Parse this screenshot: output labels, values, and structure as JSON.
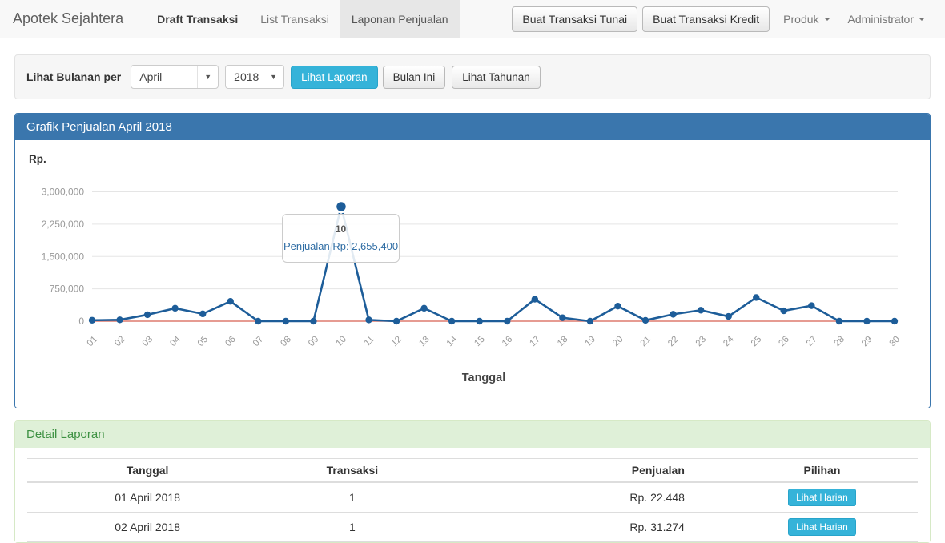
{
  "navbar": {
    "brand": "Apotek Sejahtera",
    "items": [
      {
        "label": "Draft Transaksi",
        "active": false,
        "emphasis": true
      },
      {
        "label": "List Transaksi",
        "active": false,
        "emphasis": false
      },
      {
        "label": "Laponan Penjualan",
        "active": true,
        "emphasis": false
      }
    ],
    "action_buttons": [
      "Buat Transaksi Tunai",
      "Buat Transaksi Kredit"
    ],
    "dropdowns": [
      "Produk",
      "Administrator"
    ]
  },
  "filter": {
    "label": "Lihat Bulanan per",
    "month": "April",
    "year": "2018",
    "buttons": [
      {
        "label": "Lihat Laporan",
        "style": "info"
      },
      {
        "label": "Bulan Ini",
        "style": "default"
      },
      {
        "label": "Lihat Tahunan",
        "style": "default"
      }
    ]
  },
  "chart_panel": {
    "title": "Grafik Penjualan April 2018"
  },
  "chart_data": {
    "type": "line",
    "title": "Grafik Penjualan April 2018",
    "ylabel": "Rp.",
    "xlabel": "Tanggal",
    "ylim": [
      0,
      3000000
    ],
    "grid": true,
    "yticks": [
      0,
      750000,
      1500000,
      2250000,
      3000000
    ],
    "ytick_labels": [
      "0",
      "750,000",
      "1,500,000",
      "2,250,000",
      "3,000,000"
    ],
    "categories": [
      "01",
      "02",
      "03",
      "04",
      "05",
      "06",
      "07",
      "08",
      "09",
      "10",
      "11",
      "12",
      "13",
      "14",
      "15",
      "16",
      "17",
      "18",
      "19",
      "20",
      "21",
      "22",
      "23",
      "24",
      "25",
      "26",
      "27",
      "28",
      "29",
      "30"
    ],
    "series": [
      {
        "name": "Penjualan",
        "color": "#1d5d99",
        "values": [
          22448,
          31274,
          150000,
          300000,
          170000,
          460000,
          0,
          0,
          0,
          2655400,
          30000,
          0,
          300000,
          0,
          0,
          0,
          510000,
          80000,
          0,
          350000,
          20000,
          160000,
          255000,
          110000,
          550000,
          240000,
          360000,
          0,
          0,
          0
        ]
      }
    ],
    "zero_line_color": "#dd7a6e",
    "tick_color": "#999999",
    "grid_color": "#e5e5e5",
    "tooltip": {
      "point_index": 9,
      "day_label": "10",
      "value_text": "Penjualan Rp: 2,655,400"
    }
  },
  "detail": {
    "title": "Detail Laporan",
    "columns": [
      "Tanggal",
      "Transaksi",
      "Penjualan",
      "Pilihan"
    ],
    "rows": [
      {
        "tanggal": "01 April 2018",
        "transaksi": "1",
        "penjualan": "Rp. 22.448",
        "action": "Lihat Harian"
      },
      {
        "tanggal": "02 April 2018",
        "transaksi": "1",
        "penjualan": "Rp. 31.274",
        "action": "Lihat Harian"
      }
    ]
  },
  "colors": {
    "primary": "#3a76ad",
    "info": "#35b3d9",
    "success_bg": "#dff0d8",
    "success_text": "#3d9142"
  }
}
